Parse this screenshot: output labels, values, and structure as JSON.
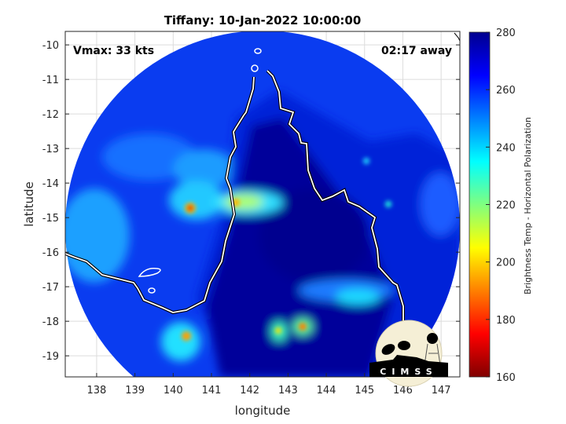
{
  "chart_data": {
    "type": "heatmap",
    "title": "Tiffany: 10-Jan-2022 10:00:00",
    "xlabel": "longitude",
    "ylabel": "latitude",
    "xlim": [
      137.18,
      147.49
    ],
    "ylim": [
      -19.61,
      -9.61
    ],
    "xticks": [
      138,
      139,
      140,
      141,
      142,
      143,
      144,
      145,
      146,
      147
    ],
    "yticks": [
      -10,
      -11,
      -12,
      -13,
      -14,
      -15,
      -16,
      -17,
      -18,
      -19
    ],
    "grid": true,
    "colorbar": {
      "label": "Brightness Temp - Horizontal Polarization",
      "range": [
        160,
        280
      ],
      "ticks": [
        160,
        180,
        200,
        220,
        240,
        260,
        280
      ],
      "colormap": "jet"
    },
    "annotations": {
      "vmax": "Vmax: 33 kts",
      "time_away": "02:17 away"
    },
    "features": [
      {
        "name": "coldest cell",
        "lon": 140.4,
        "lat": -14.7,
        "value": 180
      },
      {
        "name": "cold cell",
        "lon": 141.8,
        "lat": -14.6,
        "value": 205
      },
      {
        "name": "cold cell",
        "lon": 140.3,
        "lat": -18.3,
        "value": 190
      },
      {
        "name": "cold cell",
        "lon": 143.4,
        "lat": -18.2,
        "value": 192
      },
      {
        "name": "cold cell",
        "lon": 142.8,
        "lat": -18.3,
        "value": 205
      }
    ]
  },
  "logo": {
    "text": "CIMSS"
  },
  "colors": {
    "land_cold": "#00008f",
    "ocean": "#0a3cf0",
    "coastline": "#ffffff"
  }
}
